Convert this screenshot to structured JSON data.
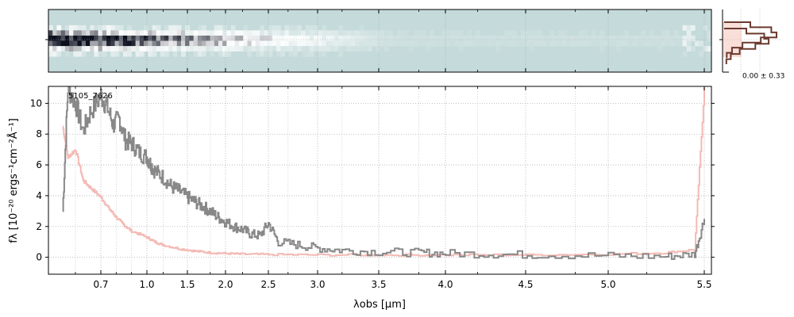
{
  "chart_data": [
    {
      "type": "heatmap",
      "panel": "2D spectrum",
      "x_scale": "nonlinear (same as 1D spectrum)",
      "colormap": [
        "#c5dada",
        "#ffffff",
        "#0b0f1e"
      ],
      "grid": true
    },
    {
      "type": "line",
      "panel": "cross-dispersion profile",
      "annotation": "0.00 ± 0.33",
      "profile_x": [
        0.0,
        0.5,
        0.9,
        1.0,
        0.7,
        0.35,
        0.15,
        0.05
      ],
      "grid": true
    },
    {
      "type": "line",
      "title": "",
      "annotation": "5105_7626",
      "xlabel": "λobs [μm]",
      "ylabel": "fλ [10⁻²⁰ ergs⁻¹cm⁻²Å⁻¹]",
      "x_ticks": [
        "0.7",
        "1.0",
        "1.5",
        "2.0",
        "2.5",
        "3.0",
        "3.5",
        "4.0",
        "4.5",
        "5.0",
        "5.5"
      ],
      "x_tick_values": [
        0.7,
        1.0,
        1.5,
        2.0,
        2.5,
        3.0,
        3.5,
        4.0,
        4.5,
        5.0,
        5.5
      ],
      "y_ticks": [
        "0",
        "2",
        "4",
        "6",
        "8",
        "10"
      ],
      "y_tick_values": [
        0,
        2,
        4,
        6,
        8,
        10
      ],
      "xlim": [
        0.5,
        5.55
      ],
      "ylim": [
        -1.1,
        11.1
      ],
      "x_scale": "nonlinear (resolution-based)",
      "grid": true,
      "series": [
        {
          "color": "#888888",
          "x": [
            0.55,
            0.57,
            0.6,
            0.63,
            0.66,
            0.7,
            0.74,
            0.78,
            0.82,
            0.86,
            0.9,
            0.95,
            1.0,
            1.05,
            1.1,
            1.2,
            1.3,
            1.4,
            1.5,
            1.6,
            1.7,
            1.8,
            1.9,
            2.0,
            2.1,
            2.2,
            2.3,
            2.4,
            2.5,
            2.6,
            2.8,
            3.0,
            3.2,
            3.5,
            3.8,
            4.0,
            4.3,
            4.6,
            5.0,
            5.3,
            5.45,
            5.5
          ],
          "y": [
            3.0,
            11.0,
            10.0,
            8.2,
            9.5,
            10.5,
            9.8,
            8.6,
            9.0,
            7.6,
            7.4,
            6.8,
            6.5,
            6.0,
            5.6,
            5.2,
            4.6,
            4.3,
            3.9,
            3.6,
            3.3,
            3.0,
            2.6,
            2.3,
            2.0,
            1.8,
            1.5,
            1.4,
            2.2,
            1.0,
            0.8,
            0.6,
            0.45,
            0.35,
            0.3,
            0.25,
            0.2,
            0.15,
            0.1,
            0.05,
            0.2,
            2.5
          ]
        },
        {
          "color": "#f4b9b4",
          "x": [
            0.55,
            0.57,
            0.6,
            0.63,
            0.66,
            0.7,
            0.75,
            0.8,
            0.85,
            0.9,
            1.0,
            1.1,
            1.2,
            1.4,
            1.6,
            1.8,
            2.0,
            2.2,
            2.5,
            3.0,
            3.5,
            4.0,
            4.5,
            5.0,
            5.3,
            5.45,
            5.5
          ],
          "y": [
            8.5,
            6.5,
            7.0,
            5.0,
            4.5,
            3.9,
            3.2,
            2.6,
            2.1,
            1.7,
            1.3,
            1.0,
            0.8,
            0.55,
            0.4,
            0.3,
            0.25,
            0.2,
            0.18,
            0.15,
            0.15,
            0.15,
            0.15,
            0.2,
            0.3,
            0.5,
            11.0
          ]
        }
      ]
    }
  ]
}
